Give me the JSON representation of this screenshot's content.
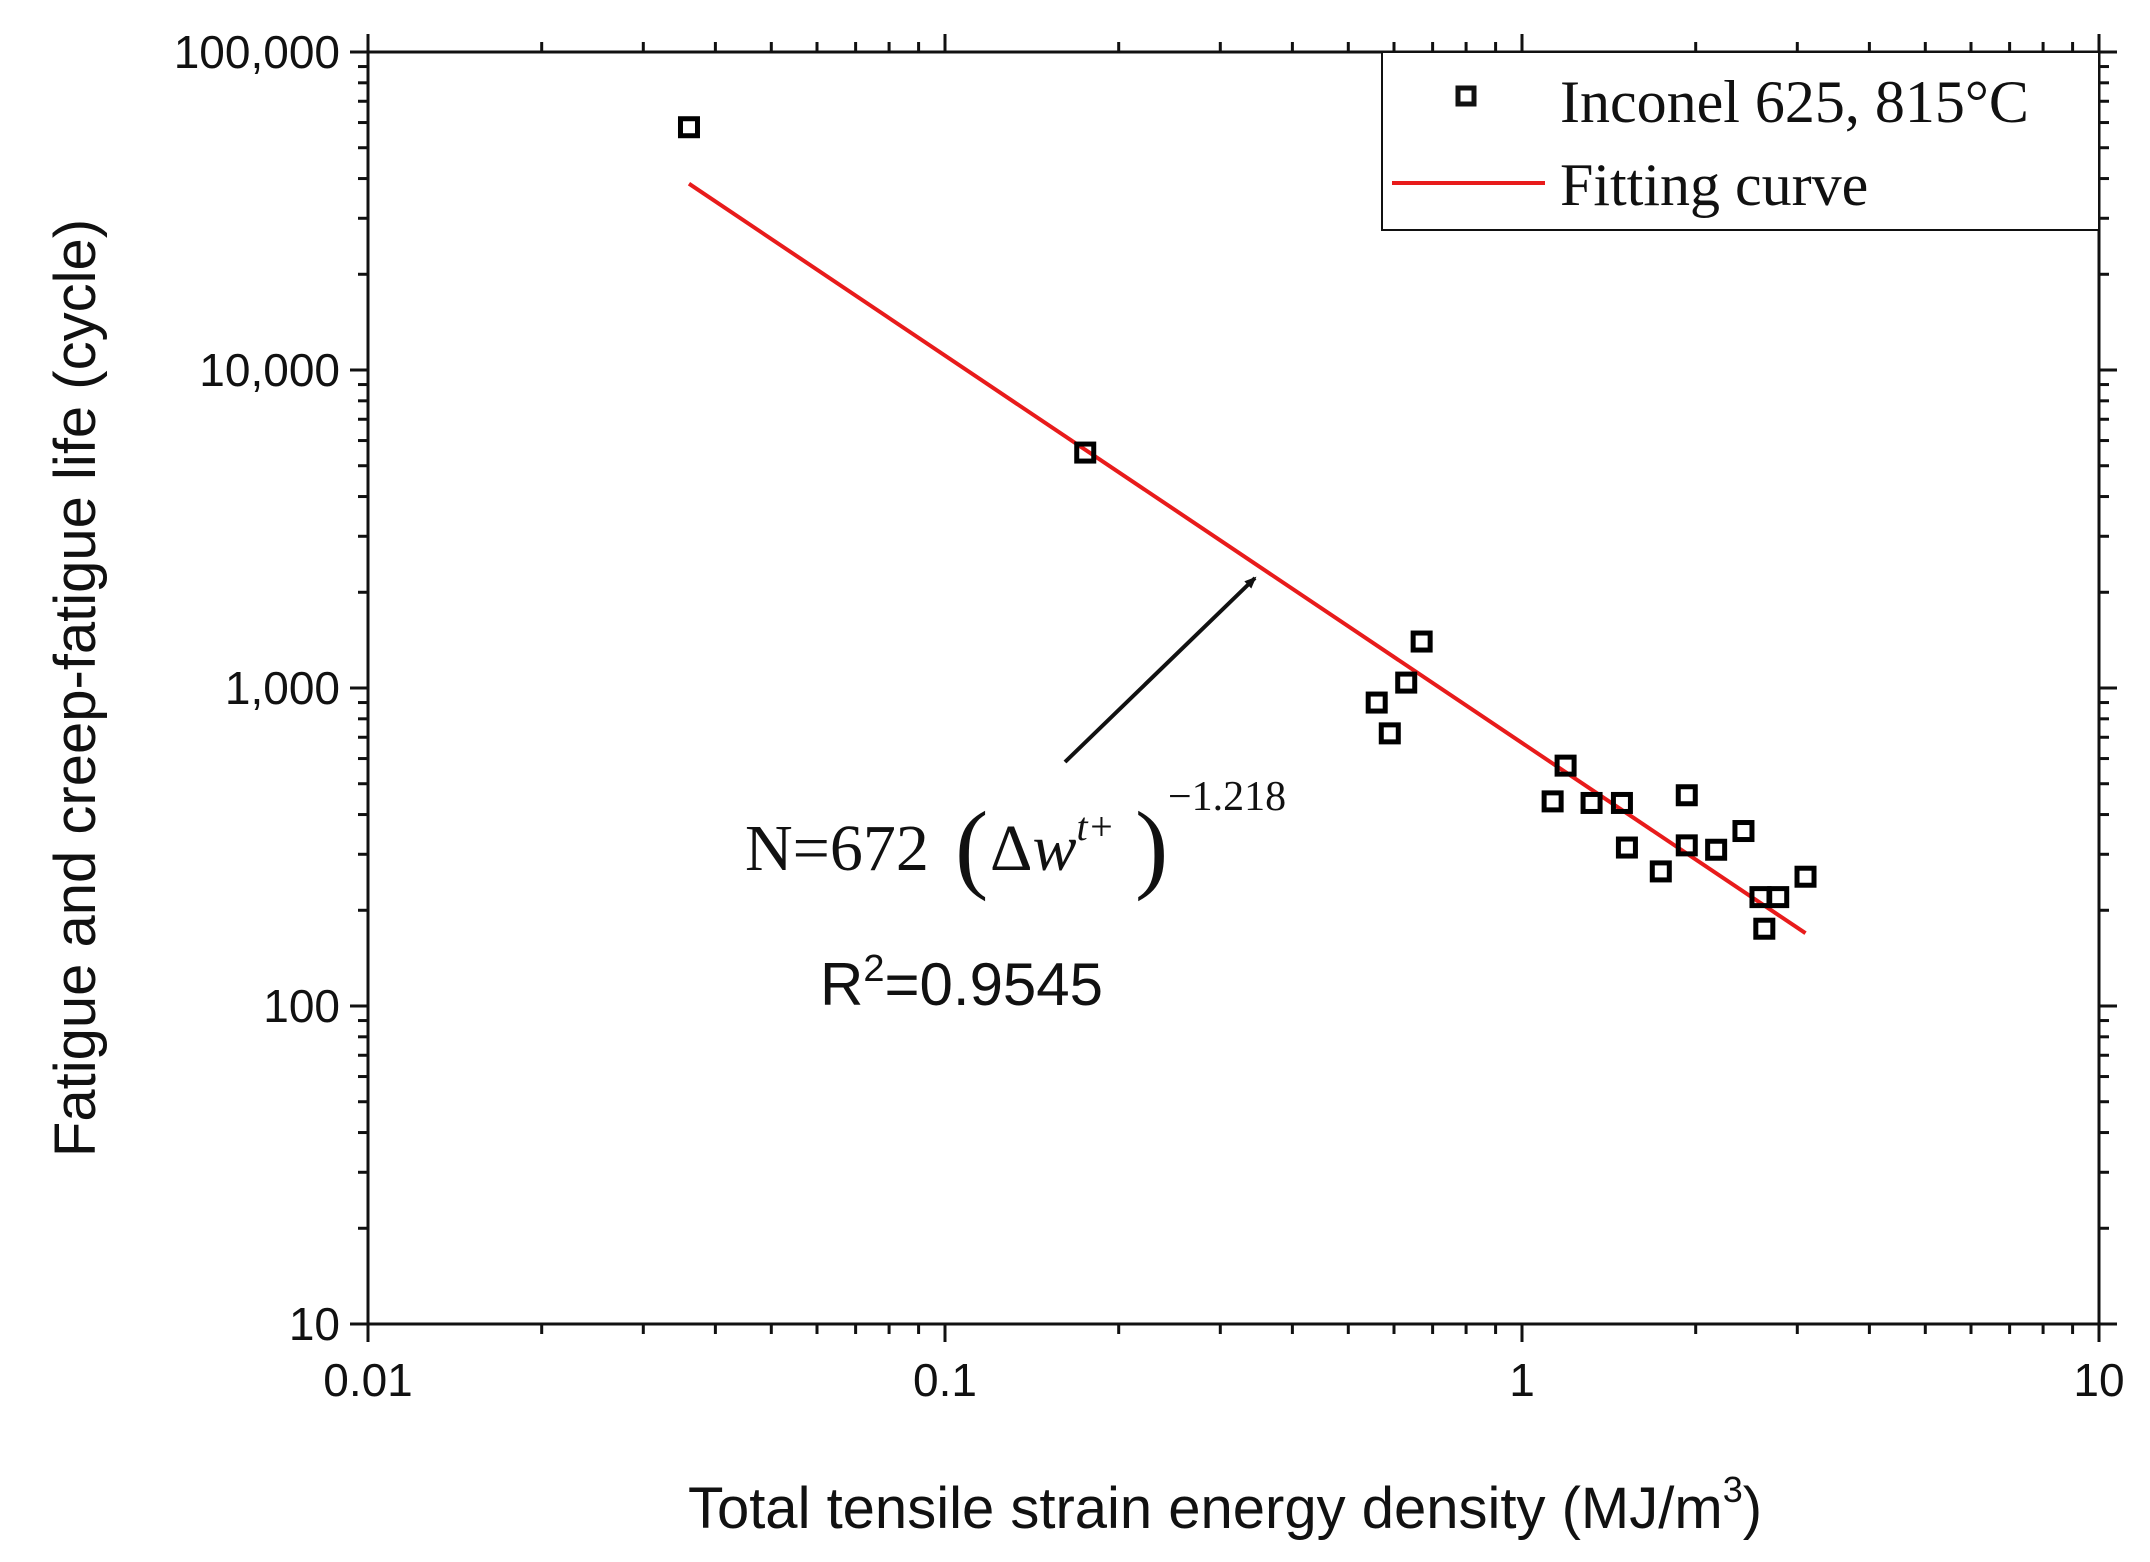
{
  "chart_data": {
    "type": "scatter",
    "xlabel": "Total tensile strain energy density (MJ/m",
    "xlabel_sup": "3",
    "xlabel_end": ")",
    "ylabel": "Fatigue and creep-fatigue life (cycle)",
    "x_scale": "log",
    "y_scale": "log",
    "xlim": [
      0.01,
      10
    ],
    "ylim": [
      10,
      100000
    ],
    "x_ticks": [
      0.01,
      0.1,
      1,
      10
    ],
    "x_tick_labels": [
      "0.01",
      "0.1",
      "1",
      "10"
    ],
    "y_ticks": [
      10,
      100,
      1000,
      10000,
      100000
    ],
    "y_tick_labels": [
      "10",
      "100",
      "1,000",
      "10,000",
      "100,000"
    ],
    "grid": false,
    "legend_position": "top-right",
    "series": [
      {
        "name": "Inconel 625, 815°C",
        "kind": "scatter",
        "marker": "hollow-square",
        "color": "#000000",
        "x": [
          0.036,
          0.175,
          0.56,
          0.59,
          0.63,
          0.67,
          1.13,
          1.19,
          1.32,
          1.49,
          1.52,
          1.74,
          1.93,
          1.93,
          2.17,
          2.42,
          2.59,
          2.63,
          2.78,
          3.1
        ],
        "y": [
          58000,
          5500,
          900,
          720,
          1040,
          1400,
          440,
          570,
          435,
          435,
          315,
          265,
          460,
          320,
          310,
          355,
          220,
          175,
          220,
          255
        ]
      },
      {
        "name": "Fitting curve",
        "kind": "line",
        "color": "#e81b1b",
        "equation": {
          "a": 672,
          "b": -1.218
        },
        "x_range": [
          0.036,
          3.1
        ]
      }
    ],
    "annotations": {
      "eq_prefix": "N=672",
      "eq_delta": "Δ",
      "eq_w": "w",
      "eq_w_sup": "t+",
      "eq_exponent": "−1.218",
      "r2_prefix": "R",
      "r2_sup": "2",
      "r2_value": "=0.9545"
    }
  }
}
